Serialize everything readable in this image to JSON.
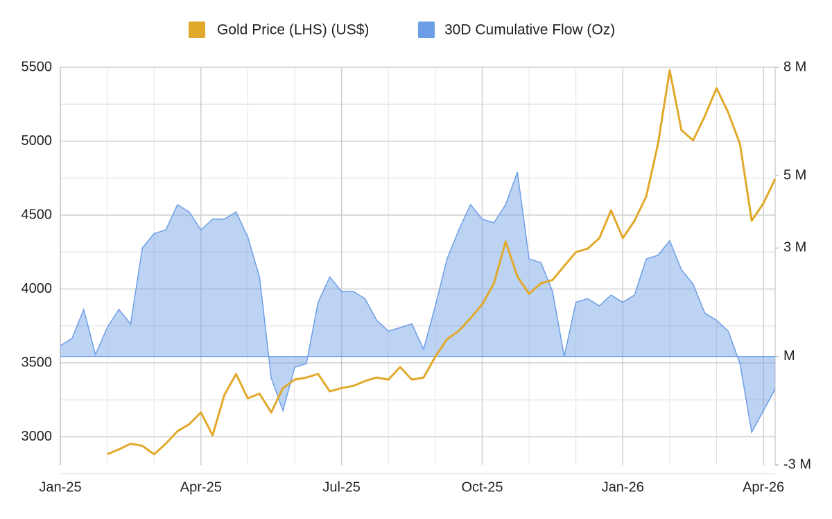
{
  "chart_data": {
    "type": "line",
    "categories": [
      "Jan-25",
      null,
      null,
      null,
      null,
      null,
      null,
      null,
      null,
      null,
      null,
      null,
      "Apr-25",
      null,
      null,
      null,
      null,
      null,
      null,
      null,
      null,
      null,
      null,
      null,
      "Jul-25",
      null,
      null,
      null,
      null,
      null,
      null,
      null,
      null,
      null,
      null,
      null,
      "Oct-25",
      null,
      null,
      null,
      null,
      null,
      null,
      null,
      null,
      null,
      null,
      null,
      "Jan-26",
      null,
      null,
      null,
      null,
      null,
      null,
      null,
      null,
      null,
      null,
      null,
      "Apr-26",
      null
    ],
    "series": [
      {
        "name": "Gold Price (LHS) (US$)",
        "color": "#e1a92a",
        "axis": "y",
        "values": [
          null,
          null,
          null,
          null,
          2882,
          2915,
          2953,
          2939,
          2882,
          2953,
          3038,
          3085,
          3165,
          3010,
          3283,
          3425,
          3260,
          3292,
          3165,
          3330,
          3387,
          3401,
          3425,
          3307,
          3330,
          3344,
          3377,
          3401,
          3387,
          3472,
          3387,
          3401,
          3543,
          3660,
          3717,
          3802,
          3896,
          4038,
          4321,
          4085,
          3967,
          4038,
          4061,
          4156,
          4250,
          4273,
          4344,
          4533,
          4344,
          4462,
          4627,
          4981,
          5480,
          5075,
          5005,
          5170,
          5359,
          5193,
          4981,
          4462,
          4580,
          4745
        ]
      },
      {
        "name": "30D Cumulative Flow (Oz)",
        "color": "#6c9ee6",
        "axis": "y2",
        "type": "area",
        "values": [
          300000,
          500000,
          1300000,
          50000,
          800000,
          1300000,
          900000,
          3000000,
          3400000,
          3500000,
          4200000,
          4000000,
          3500000,
          3800000,
          3800000,
          4000000,
          3300000,
          2200000,
          -600000,
          -1500000,
          -300000,
          -200000,
          1500000,
          2200000,
          1800000,
          1800000,
          1600000,
          1000000,
          700000,
          800000,
          900000,
          200000,
          1400000,
          2700000,
          3500000,
          4200000,
          3800000,
          3700000,
          4200000,
          5100000,
          2700000,
          2600000,
          1800000,
          0,
          1500000,
          1600000,
          1400000,
          1700000,
          1500000,
          1700000,
          2700000,
          2800000,
          3200000,
          2400000,
          2000000,
          1200000,
          1000000,
          700000,
          -200000,
          -2100000,
          -1500000,
          -900000
        ]
      }
    ],
    "ylim": [
      2810,
      5500
    ],
    "yticks": [
      3000,
      3500,
      4000,
      4500,
      5000,
      5500
    ],
    "y2lim": [
      -3000000,
      8000000
    ],
    "y2ticks": [
      {
        "value": -3000000,
        "label": "-3 M"
      },
      {
        "value": 0,
        "label": "M"
      },
      {
        "value": 3000000,
        "label": "3 M"
      },
      {
        "value": 5000000,
        "label": "5 M"
      },
      {
        "value": 8000000,
        "label": "8 M"
      }
    ],
    "grid": true,
    "legend": "top"
  }
}
